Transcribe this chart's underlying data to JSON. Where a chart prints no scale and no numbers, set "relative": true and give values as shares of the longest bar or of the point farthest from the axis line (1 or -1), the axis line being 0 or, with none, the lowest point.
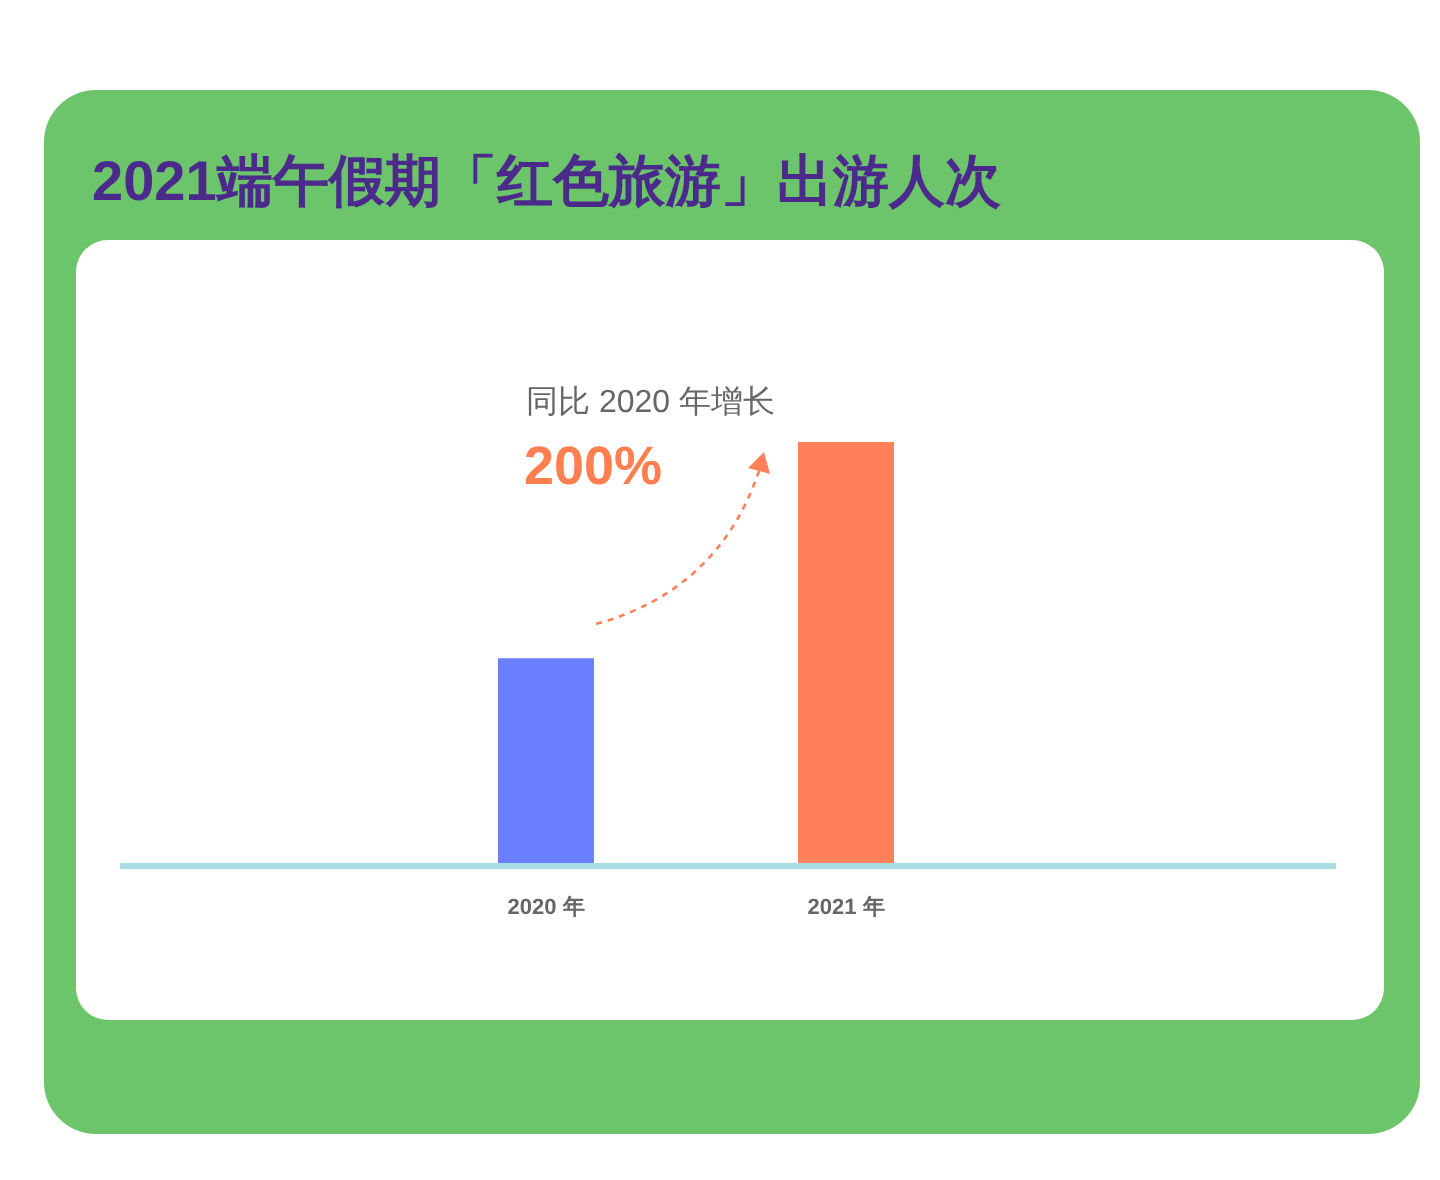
{
  "chart_data": {
    "type": "bar",
    "title": "2021端午假期「红色旅游」出游人次",
    "categories": [
      "2020 年",
      "2021 年"
    ],
    "values": [
      0.49,
      1
    ],
    "colors": [
      "#6b80ff",
      "#ff8059"
    ],
    "relative": true,
    "annotations": [
      "同比 2020 年增长",
      "200%"
    ]
  }
}
